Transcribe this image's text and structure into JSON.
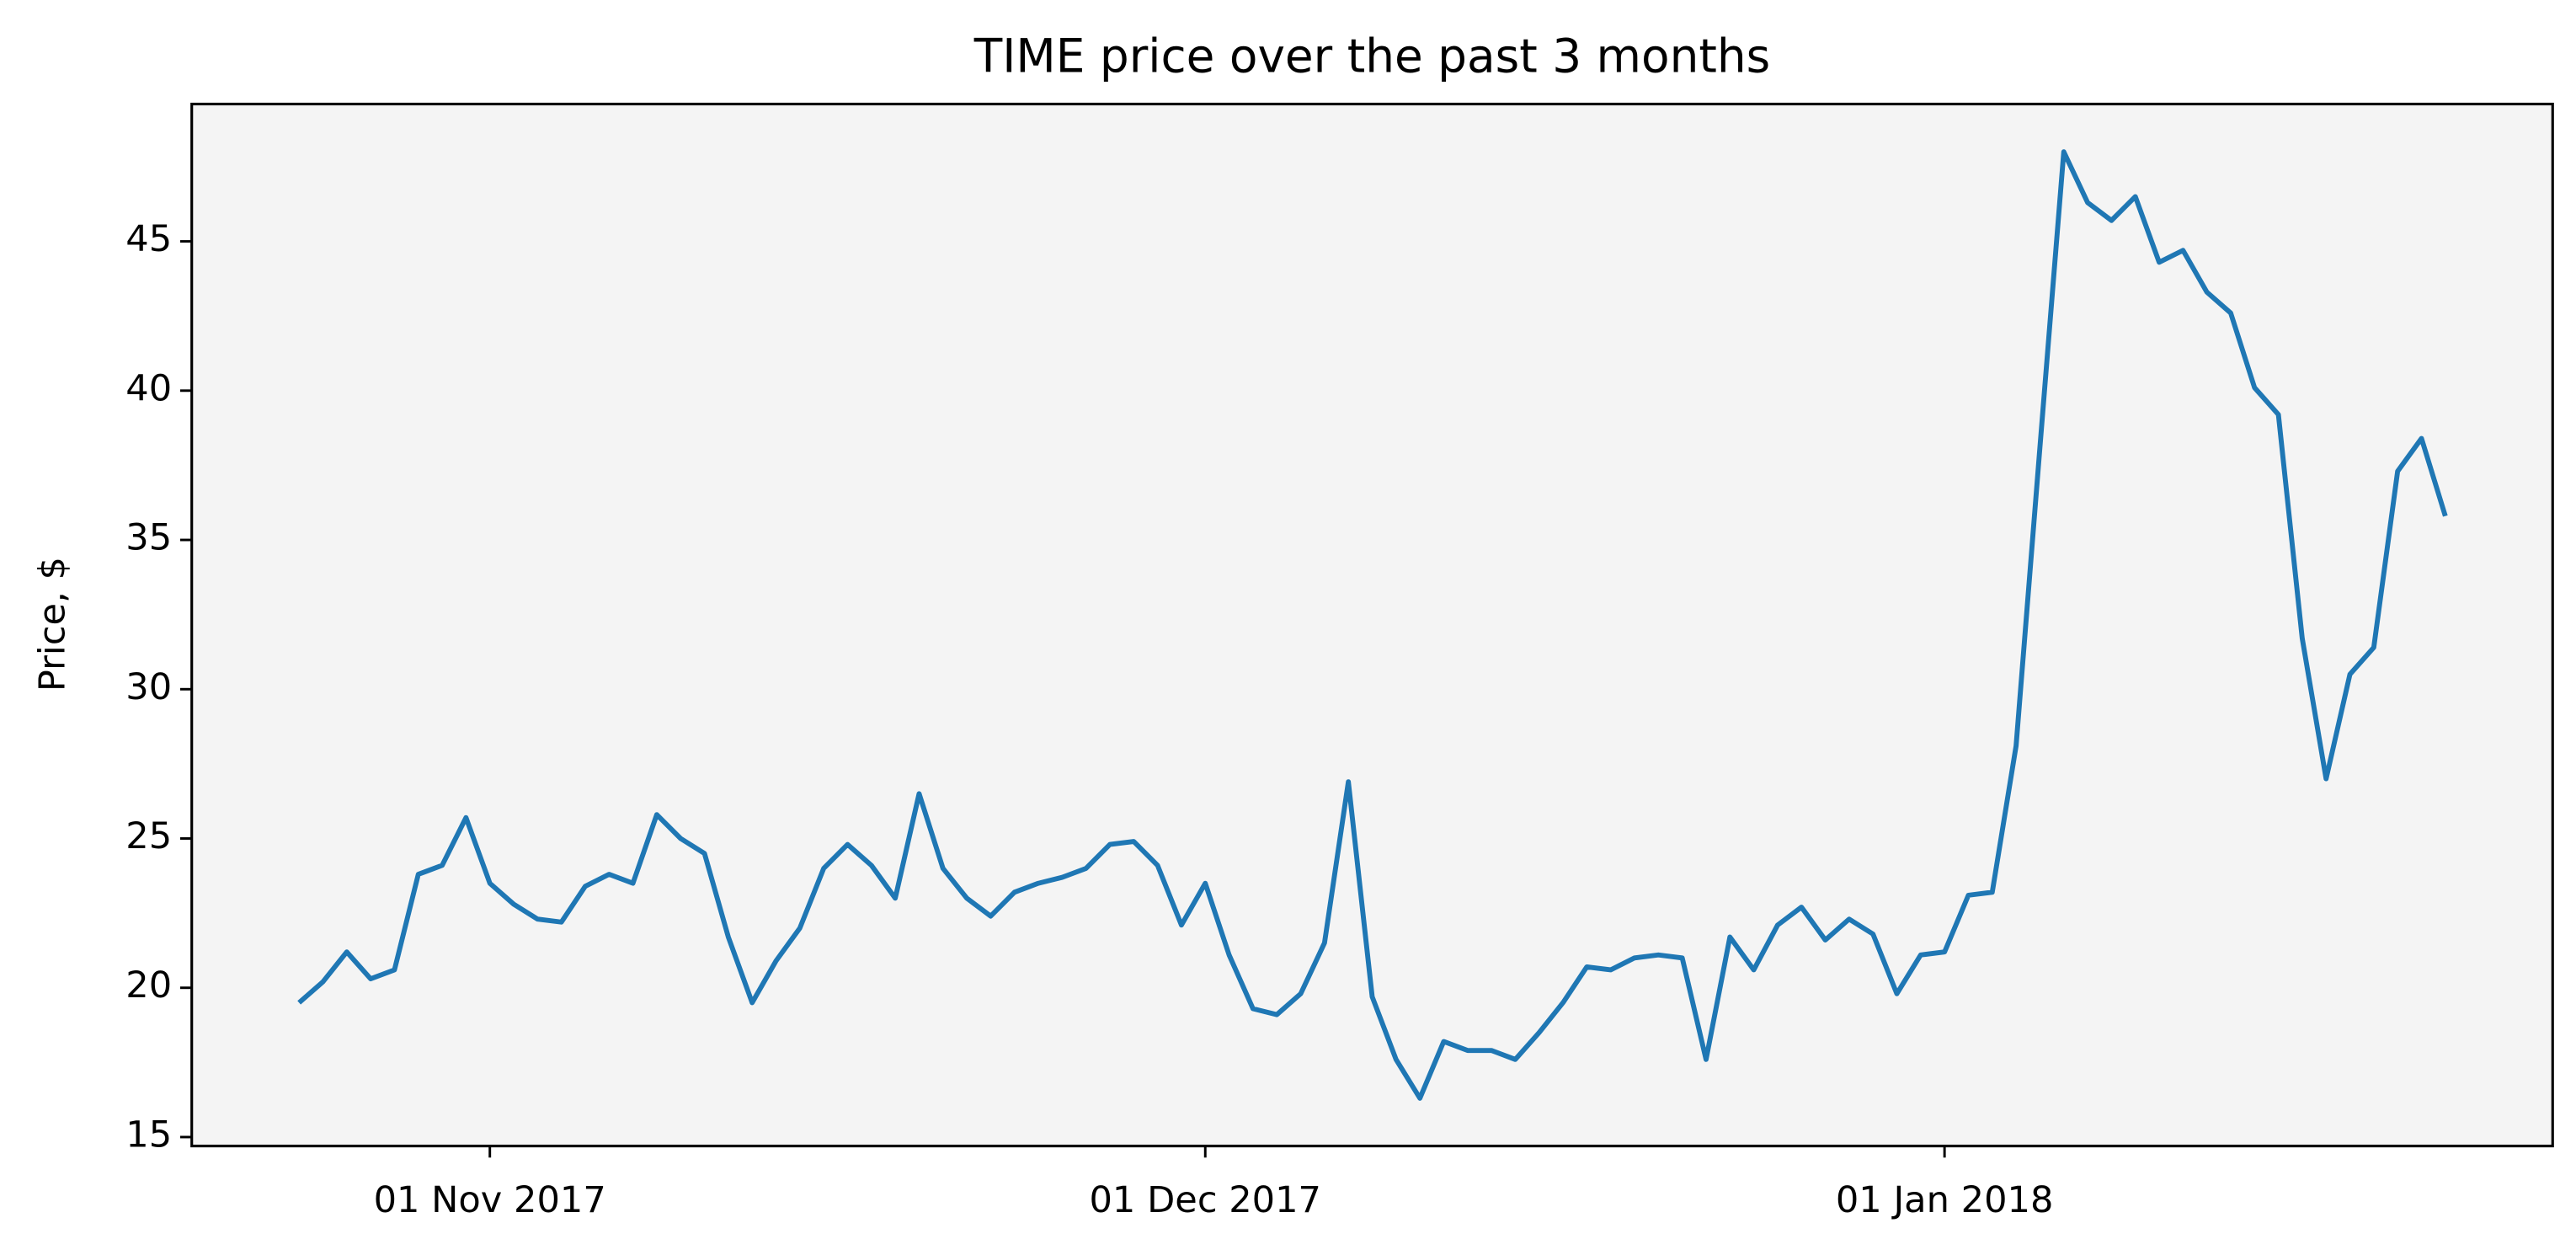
{
  "chart_data": {
    "type": "line",
    "title": "TIME price over the past 3 months",
    "y_label": "Price, $",
    "x": [
      "2017-10-24",
      "2017-10-25",
      "2017-10-26",
      "2017-10-27",
      "2017-10-28",
      "2017-10-29",
      "2017-10-30",
      "2017-10-31",
      "2017-11-01",
      "2017-11-02",
      "2017-11-03",
      "2017-11-04",
      "2017-11-05",
      "2017-11-06",
      "2017-11-07",
      "2017-11-08",
      "2017-11-09",
      "2017-11-10",
      "2017-11-11",
      "2017-11-12",
      "2017-11-13",
      "2017-11-14",
      "2017-11-15",
      "2017-11-16",
      "2017-11-17",
      "2017-11-18",
      "2017-11-19",
      "2017-11-20",
      "2017-11-21",
      "2017-11-22",
      "2017-11-23",
      "2017-11-24",
      "2017-11-25",
      "2017-11-26",
      "2017-11-27",
      "2017-11-28",
      "2017-11-29",
      "2017-11-30",
      "2017-12-01",
      "2017-12-02",
      "2017-12-03",
      "2017-12-04",
      "2017-12-05",
      "2017-12-06",
      "2017-12-07",
      "2017-12-08",
      "2017-12-09",
      "2017-12-10",
      "2017-12-11",
      "2017-12-12",
      "2017-12-13",
      "2017-12-14",
      "2017-12-15",
      "2017-12-16",
      "2017-12-17",
      "2017-12-18",
      "2017-12-19",
      "2017-12-20",
      "2017-12-21",
      "2017-12-22",
      "2017-12-23",
      "2017-12-24",
      "2017-12-25",
      "2017-12-26",
      "2017-12-27",
      "2017-12-28",
      "2017-12-29",
      "2017-12-30",
      "2017-12-31",
      "2018-01-01",
      "2018-01-02",
      "2018-01-03",
      "2018-01-04",
      "2018-01-05",
      "2018-01-06",
      "2018-01-07",
      "2018-01-08",
      "2018-01-09",
      "2018-01-10",
      "2018-01-11",
      "2018-01-12",
      "2018-01-13",
      "2018-01-14",
      "2018-01-15",
      "2018-01-16",
      "2018-01-17",
      "2018-01-18",
      "2018-01-19",
      "2018-01-20",
      "2018-01-21",
      "2018-01-22"
    ],
    "series": [
      {
        "name": "TIME",
        "color": "#1f77b4",
        "values": [
          19.5,
          20.2,
          21.2,
          20.3,
          20.6,
          23.8,
          24.1,
          25.7,
          23.5,
          22.8,
          22.3,
          22.2,
          23.4,
          23.8,
          23.5,
          25.8,
          25.0,
          24.5,
          21.7,
          19.5,
          20.9,
          22.0,
          24.0,
          24.8,
          24.1,
          23.0,
          26.5,
          24.0,
          23.0,
          22.4,
          23.2,
          23.5,
          23.7,
          24.0,
          24.8,
          24.9,
          24.1,
          22.1,
          23.5,
          21.1,
          19.3,
          19.1,
          19.8,
          21.5,
          26.9,
          19.7,
          17.6,
          16.3,
          18.2,
          17.9,
          17.9,
          17.6,
          18.5,
          19.5,
          20.7,
          20.6,
          21.0,
          21.1,
          21.0,
          17.6,
          21.7,
          20.6,
          22.1,
          22.7,
          21.6,
          22.3,
          21.8,
          19.8,
          21.1,
          21.2,
          23.1,
          23.2,
          28.1,
          38.1,
          48.0,
          46.3,
          45.7,
          46.5,
          44.3,
          44.7,
          43.3,
          42.6,
          40.1,
          39.2,
          31.7,
          27.0,
          30.5,
          31.4,
          37.3,
          38.4,
          35.8
        ]
      }
    ],
    "xlim": [
      "2017-10-19T12:00",
      "2018-01-26T12:00"
    ],
    "xticks": [
      {
        "value": "2017-11-01",
        "label": "01 Nov 2017"
      },
      {
        "value": "2017-12-01",
        "label": "01 Dec 2017"
      },
      {
        "value": "2018-01-01",
        "label": "01 Jan 2018"
      }
    ],
    "ylim": [
      14.7,
      49.6
    ],
    "yticks": [
      15,
      20,
      25,
      30,
      35,
      40,
      45
    ],
    "grid": false,
    "background": "#f4f4f4"
  }
}
